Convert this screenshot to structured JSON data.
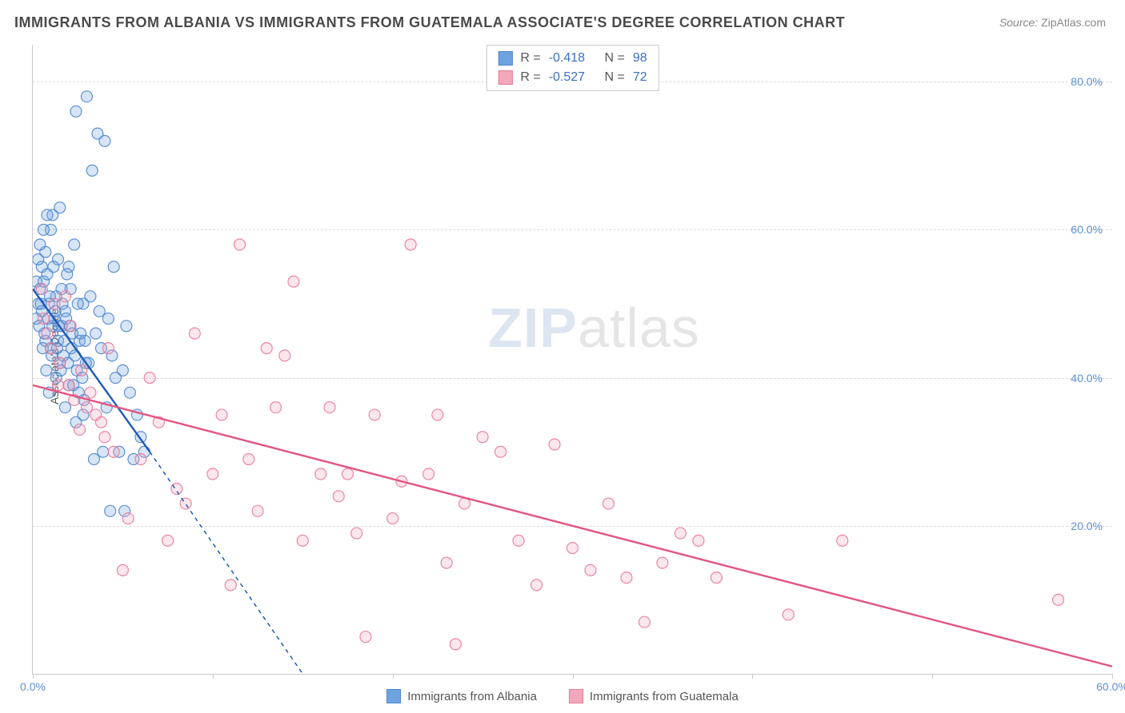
{
  "title": "IMMIGRANTS FROM ALBANIA VS IMMIGRANTS FROM GUATEMALA ASSOCIATE'S DEGREE CORRELATION CHART",
  "source_label": "Source:",
  "source_value": "ZipAtlas.com",
  "ylabel": "Associate's Degree",
  "watermark_zip": "ZIP",
  "watermark_atlas": "atlas",
  "chart": {
    "type": "scatter",
    "background_color": "#ffffff",
    "grid_color": "#d9d9d9",
    "axis_color": "#c9c9c9",
    "tick_label_color": "#5b8fd6",
    "title_color": "#4a4a4a",
    "title_fontsize": 18,
    "label_fontsize": 14,
    "xlim": [
      0,
      60
    ],
    "ylim": [
      0,
      85
    ],
    "yticks": [
      20,
      40,
      60,
      80
    ],
    "ytick_labels": [
      "20.0%",
      "40.0%",
      "60.0%",
      "80.0%"
    ],
    "xticks": [
      0,
      10,
      20,
      30,
      40,
      50,
      60
    ],
    "xtick_labels": [
      "0.0%",
      "",
      "",
      "",
      "",
      "",
      "60.0%"
    ],
    "marker_radius": 7,
    "marker_fill_opacity": 0.28,
    "marker_stroke_opacity": 0.9
  },
  "series": [
    {
      "name": "Immigrants from Albania",
      "color": "#6fa3e0",
      "stroke": "#4f86cf",
      "regression_color": "#1f5bb5",
      "R": "-0.418",
      "N": "98",
      "regression": {
        "x1": 0,
        "y1": 52,
        "x2": 6.5,
        "y2": 30,
        "dash_ext_x2": 15,
        "dash_ext_y2": 0
      },
      "points": [
        [
          0.3,
          50
        ],
        [
          0.4,
          52
        ],
        [
          0.5,
          55
        ],
        [
          0.6,
          53
        ],
        [
          0.7,
          57
        ],
        [
          0.8,
          54
        ],
        [
          0.9,
          50
        ],
        [
          1.0,
          60
        ],
        [
          1.1,
          62
        ],
        [
          1.2,
          48
        ],
        [
          1.3,
          51
        ],
        [
          1.4,
          56
        ],
        [
          1.5,
          63
        ],
        [
          1.6,
          47
        ],
        [
          1.8,
          49
        ],
        [
          2.0,
          55
        ],
        [
          2.1,
          52
        ],
        [
          2.3,
          58
        ],
        [
          2.4,
          76
        ],
        [
          2.6,
          45
        ],
        [
          2.8,
          50
        ],
        [
          3.0,
          78
        ],
        [
          3.1,
          42
        ],
        [
          3.3,
          68
        ],
        [
          3.5,
          46
        ],
        [
          3.6,
          73
        ],
        [
          3.8,
          44
        ],
        [
          4.0,
          72
        ],
        [
          4.2,
          48
        ],
        [
          4.4,
          43
        ],
        [
          4.5,
          55
        ],
        [
          4.8,
          30
        ],
        [
          5.0,
          41
        ],
        [
          5.2,
          47
        ],
        [
          5.4,
          38
        ],
        [
          5.6,
          29
        ],
        [
          5.8,
          35
        ],
        [
          6.0,
          32
        ],
        [
          6.2,
          30
        ],
        [
          1.0,
          44
        ],
        [
          1.3,
          40
        ],
        [
          1.5,
          42
        ],
        [
          0.7,
          45
        ],
        [
          0.9,
          38
        ],
        [
          1.8,
          36
        ],
        [
          2.0,
          39
        ],
        [
          2.4,
          34
        ],
        [
          2.8,
          35
        ],
        [
          0.6,
          60
        ],
        [
          0.8,
          62
        ],
        [
          1.1,
          47
        ],
        [
          1.4,
          45
        ],
        [
          1.9,
          54
        ],
        [
          2.2,
          46
        ],
        [
          0.5,
          49
        ],
        [
          0.4,
          58
        ],
        [
          0.3,
          56
        ],
        [
          3.2,
          51
        ],
        [
          3.7,
          49
        ],
        [
          4.1,
          36
        ],
        [
          4.6,
          40
        ],
        [
          1.6,
          52
        ],
        [
          1.7,
          43
        ],
        [
          2.5,
          50
        ],
        [
          2.9,
          45
        ],
        [
          0.2,
          53
        ],
        [
          0.2,
          48
        ],
        [
          0.35,
          47
        ],
        [
          0.45,
          50
        ],
        [
          0.55,
          44
        ],
        [
          0.65,
          46
        ],
        [
          0.75,
          41
        ],
        [
          0.85,
          48
        ],
        [
          0.95,
          51
        ],
        [
          1.05,
          43
        ],
        [
          1.15,
          55
        ],
        [
          1.25,
          49
        ],
        [
          1.35,
          44
        ],
        [
          1.45,
          47
        ],
        [
          1.55,
          41
        ],
        [
          1.65,
          50
        ],
        [
          1.75,
          45
        ],
        [
          1.85,
          48
        ],
        [
          1.95,
          42
        ],
        [
          2.05,
          47
        ],
        [
          2.15,
          44
        ],
        [
          2.25,
          39
        ],
        [
          2.35,
          43
        ],
        [
          2.45,
          41
        ],
        [
          2.55,
          38
        ],
        [
          2.65,
          46
        ],
        [
          2.75,
          40
        ],
        [
          2.85,
          37
        ],
        [
          2.95,
          42
        ],
        [
          4.3,
          22
        ],
        [
          5.1,
          22
        ],
        [
          3.4,
          29
        ],
        [
          3.9,
          30
        ]
      ]
    },
    {
      "name": "Immigrants from Guatemala",
      "color": "#f2a8ba",
      "stroke": "#e87b98",
      "regression_color": "#e25580",
      "R": "-0.527",
      "N": "72",
      "regression": {
        "x1": 0,
        "y1": 39,
        "x2": 60,
        "y2": 1
      },
      "points": [
        [
          1.0,
          44
        ],
        [
          1.5,
          42
        ],
        [
          2.0,
          39
        ],
        [
          2.3,
          37
        ],
        [
          2.7,
          41
        ],
        [
          3.0,
          36
        ],
        [
          3.2,
          38
        ],
        [
          3.5,
          35
        ],
        [
          3.8,
          34
        ],
        [
          4.0,
          32
        ],
        [
          4.5,
          30
        ],
        [
          5.0,
          14
        ],
        [
          5.3,
          21
        ],
        [
          6.0,
          29
        ],
        [
          7.0,
          34
        ],
        [
          7.5,
          18
        ],
        [
          8.0,
          25
        ],
        [
          8.5,
          23
        ],
        [
          9.0,
          46
        ],
        [
          10.0,
          27
        ],
        [
          10.5,
          35
        ],
        [
          11.0,
          12
        ],
        [
          11.5,
          58
        ],
        [
          12.0,
          29
        ],
        [
          12.5,
          22
        ],
        [
          13.0,
          44
        ],
        [
          13.5,
          36
        ],
        [
          14.0,
          43
        ],
        [
          14.5,
          53
        ],
        [
          15.0,
          18
        ],
        [
          16.0,
          27
        ],
        [
          16.5,
          36
        ],
        [
          17.0,
          24
        ],
        [
          17.5,
          27
        ],
        [
          18.0,
          19
        ],
        [
          18.5,
          5
        ],
        [
          19.0,
          35
        ],
        [
          20.0,
          21
        ],
        [
          20.5,
          26
        ],
        [
          21.0,
          58
        ],
        [
          22.0,
          27
        ],
        [
          22.5,
          35
        ],
        [
          23.0,
          15
        ],
        [
          23.5,
          4
        ],
        [
          24.0,
          23
        ],
        [
          25.0,
          32
        ],
        [
          26.0,
          30
        ],
        [
          27.0,
          18
        ],
        [
          28.0,
          12
        ],
        [
          29.0,
          31
        ],
        [
          30.0,
          17
        ],
        [
          31.0,
          14
        ],
        [
          32.0,
          23
        ],
        [
          33.0,
          13
        ],
        [
          34.0,
          7
        ],
        [
          35.0,
          15
        ],
        [
          36.0,
          19
        ],
        [
          37.0,
          18
        ],
        [
          38.0,
          13
        ],
        [
          42.0,
          8
        ],
        [
          45.0,
          18
        ],
        [
          57.0,
          10
        ],
        [
          1.8,
          51
        ],
        [
          2.1,
          47
        ],
        [
          1.2,
          50
        ],
        [
          0.8,
          46
        ],
        [
          0.6,
          48
        ],
        [
          0.5,
          52
        ],
        [
          1.4,
          39
        ],
        [
          2.6,
          33
        ],
        [
          4.2,
          44
        ],
        [
          6.5,
          40
        ]
      ]
    }
  ],
  "legend": {
    "r_label": "R =",
    "n_label": "N ="
  }
}
